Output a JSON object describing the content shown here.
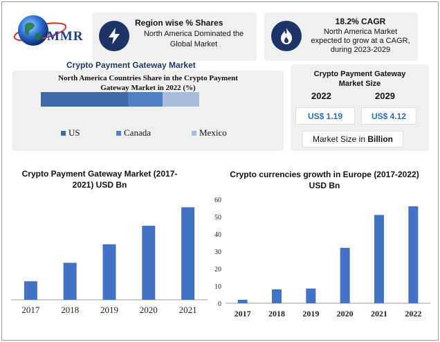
{
  "brand": {
    "logo_text": "MMR"
  },
  "card_region": {
    "title": "Region wise % Shares",
    "text_line1": "North America Dominated the",
    "text_line2": "Global Market",
    "icon": "lightning-icon"
  },
  "card_cagr": {
    "title": "18.2% CAGR",
    "text_line1": "North America Market",
    "text_line2": "expected to grow at a CAGR,",
    "text_line3": "during 2023-2029",
    "icon": "flame-icon"
  },
  "market_title": "Crypto Payment Gateway Market",
  "size_card": {
    "title_line1": "Crypto Payment Gateway",
    "title_line2": "Market Size",
    "year_a": "2022",
    "year_b": "2029",
    "value_a": "US$ 1.19",
    "value_b": "US$ 4.12",
    "footer_prefix": "Market Size in ",
    "footer_bold": "Billion"
  },
  "colors": {
    "us": "#3f6aa6",
    "canada": "#4f81c4",
    "mexico": "#a9bcdd",
    "bar": "#4472c4",
    "navy": "#1d3566"
  },
  "chart_data": [
    {
      "type": "bar",
      "orientation": "horizontal-stacked",
      "title_line1": "North America Countries Share in the Crypto Payment",
      "title_line2": "Gateway Market in 2022 (%)",
      "series": [
        {
          "name": "US",
          "values": [
            55
          ]
        },
        {
          "name": "Canada",
          "values": [
            22
          ]
        },
        {
          "name": "Mexico",
          "values": [
            23
          ]
        }
      ],
      "legend": "bottom"
    },
    {
      "type": "bar",
      "title_line1": "Crypto Payment Gateway Market (2017-",
      "title_line2": "2021) USD Bn",
      "categories": [
        "2017",
        "2018",
        "2019",
        "2020",
        "2021"
      ],
      "values": [
        0.2,
        0.4,
        0.6,
        0.8,
        1.0
      ],
      "ylim": [
        0,
        1.1
      ],
      "yaxis_visible": false
    },
    {
      "type": "bar",
      "title_line1": "Crypto currencies growth in Europe (2017-2022)",
      "title_line2": "USD Bn",
      "categories": [
        "2017",
        "2018",
        "2019",
        "2020",
        "2021",
        "2022"
      ],
      "values": [
        2,
        8,
        8.5,
        32,
        51,
        56
      ],
      "ylim": [
        0,
        60
      ],
      "yticks": [
        0,
        10,
        20,
        30,
        40,
        50,
        60
      ]
    }
  ]
}
